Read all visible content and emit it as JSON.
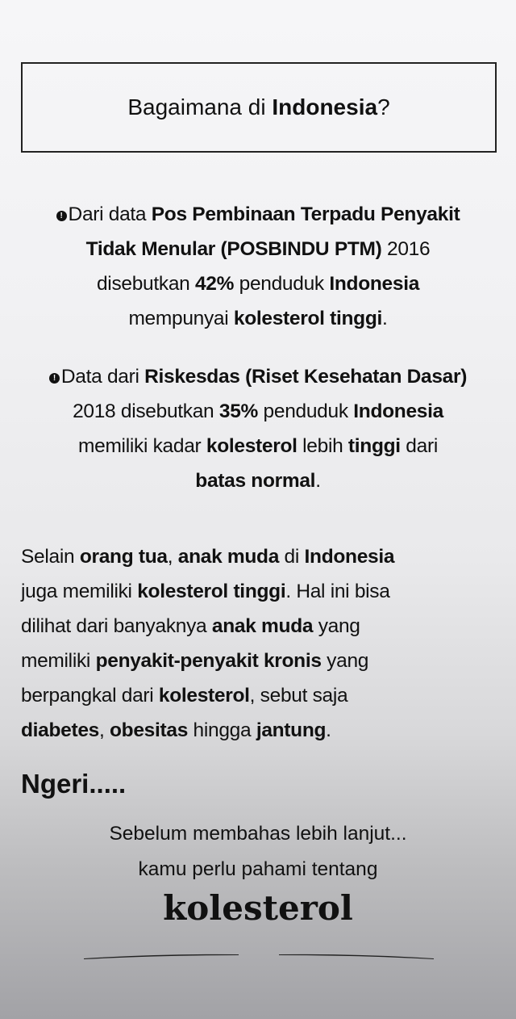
{
  "title": {
    "segments": [
      {
        "t": "Bagaimana di "
      },
      {
        "t": "Indonesia",
        "b": true
      },
      {
        "t": "?"
      }
    ]
  },
  "paragraphs": [
    {
      "bullet": "!",
      "lines": [
        [
          {
            "t": "Dari data "
          },
          {
            "t": "Pos Pembinaan Terpadu Penyakit",
            "b": true
          }
        ],
        [
          {
            "t": "Tidak Menular (POSBINDU PTM)",
            "b": true
          },
          {
            "t": " 2016"
          }
        ],
        [
          {
            "t": "disebutkan "
          },
          {
            "t": "42%",
            "b": true
          },
          {
            "t": " penduduk "
          },
          {
            "t": "Indonesia",
            "b": true
          }
        ],
        [
          {
            "t": "mempunyai "
          },
          {
            "t": "kolesterol tinggi",
            "b": true
          },
          {
            "t": "."
          }
        ]
      ]
    },
    {
      "bullet": "!",
      "lines": [
        [
          {
            "t": "Data dari "
          },
          {
            "t": "Riskesdas (Riset Kesehatan Dasar)",
            "b": true
          }
        ],
        [
          {
            "t": "2018 disebutkan "
          },
          {
            "t": "35%",
            "b": true
          },
          {
            "t": " penduduk "
          },
          {
            "t": "Indonesia",
            "b": true
          }
        ],
        [
          {
            "t": "memiliki kadar "
          },
          {
            "t": "kolesterol",
            "b": true
          },
          {
            "t": " lebih "
          },
          {
            "t": "tinggi",
            "b": true
          },
          {
            "t": " dari"
          }
        ],
        [
          {
            "t": "batas normal",
            "b": true
          },
          {
            "t": "."
          }
        ]
      ]
    },
    {
      "lines": [
        [
          {
            "t": "Selain "
          },
          {
            "t": "orang tua",
            "b": true
          },
          {
            "t": ", "
          },
          {
            "t": "anak muda",
            "b": true
          },
          {
            "t": " di "
          },
          {
            "t": "Indonesia",
            "b": true
          }
        ],
        [
          {
            "t": "juga memiliki "
          },
          {
            "t": "kolesterol tinggi",
            "b": true
          },
          {
            "t": ". Hal ini bisa"
          }
        ],
        [
          {
            "t": "dilihat dari banyaknya "
          },
          {
            "t": "anak muda",
            "b": true
          },
          {
            "t": " yang"
          }
        ],
        [
          {
            "t": "memiliki "
          },
          {
            "t": "penyakit-penyakit kronis",
            "b": true
          },
          {
            "t": " yang"
          }
        ],
        [
          {
            "t": "berpangkal dari "
          },
          {
            "t": "kolesterol",
            "b": true
          },
          {
            "t": ", sebut saja"
          }
        ],
        [
          {
            "t": "diabetes",
            "b": true
          },
          {
            "t": ", "
          },
          {
            "t": "obesitas",
            "b": true
          },
          {
            "t": " hingga "
          },
          {
            "t": "jantung",
            "b": true
          },
          {
            "t": "."
          }
        ]
      ]
    }
  ],
  "exclamation": "Ngeri.....",
  "intro_lines": [
    "Sebelum membahas lebih lanjut...",
    "kamu perlu pahami tentang"
  ],
  "headline": "kolesterol"
}
